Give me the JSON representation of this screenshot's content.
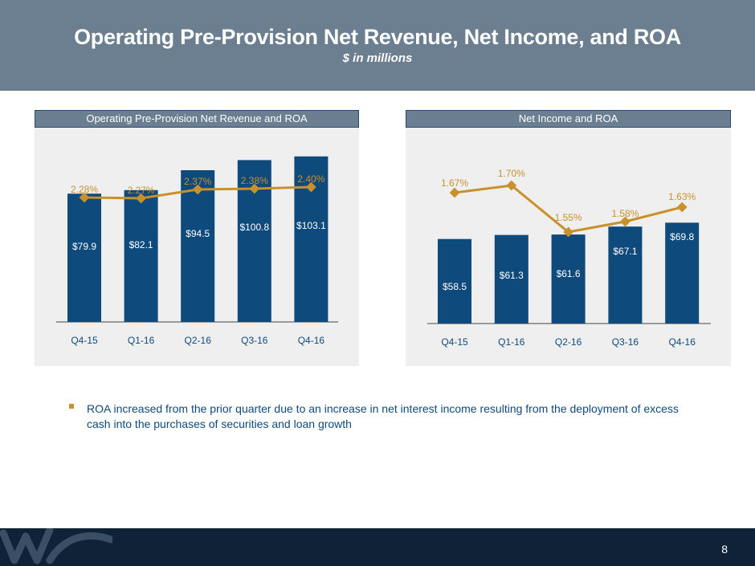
{
  "header": {
    "title": "Operating Pre-Provision Net Revenue, Net Income, and ROA",
    "subtitle": "$ in millions"
  },
  "colors": {
    "bar": "#0e4a7c",
    "line": "#c8912b",
    "header": "#6b7f91",
    "footer": "#0f2238"
  },
  "chart_data": [
    {
      "type": "bar",
      "title": "Operating Pre-Provision Net Revenue and ROA",
      "categories": [
        "Q4-15",
        "Q1-16",
        "Q2-16",
        "Q3-16",
        "Q4-16"
      ],
      "series": [
        {
          "name": "Operating Pre-Provision Net Revenue",
          "type": "bar",
          "values": [
            79.9,
            82.1,
            94.5,
            100.8,
            103.1
          ],
          "labels": [
            "$79.9",
            "$82.1",
            "$94.5",
            "$100.8",
            "$103.1"
          ]
        },
        {
          "name": "ROA",
          "type": "line",
          "values": [
            2.28,
            2.27,
            2.37,
            2.38,
            2.4
          ],
          "labels": [
            "2.28%",
            "2.27%",
            "2.37%",
            "2.38%",
            "2.40%"
          ]
        }
      ]
    },
    {
      "type": "bar",
      "title": "Net Income and ROA",
      "categories": [
        "Q4-15",
        "Q1-16",
        "Q2-16",
        "Q3-16",
        "Q4-16"
      ],
      "series": [
        {
          "name": "Net Income",
          "type": "bar",
          "values": [
            58.5,
            61.3,
            61.6,
            67.1,
            69.8
          ],
          "labels": [
            "$58.5",
            "$61.3",
            "$61.6",
            "$67.1",
            "$69.8"
          ]
        },
        {
          "name": "ROA",
          "type": "line",
          "values": [
            1.67,
            1.7,
            1.55,
            1.58,
            1.63
          ],
          "labels": [
            "1.67%",
            "1.70%",
            "1.55%",
            "1.58%",
            "1.63%"
          ]
        }
      ]
    }
  ],
  "bullets": [
    "ROA increased from the prior quarter due to an increase in net interest income resulting from the deployment of excess cash into the purchases of securities and loan growth"
  ],
  "footer": {
    "page_number": "8",
    "logo": "wa-logo"
  }
}
